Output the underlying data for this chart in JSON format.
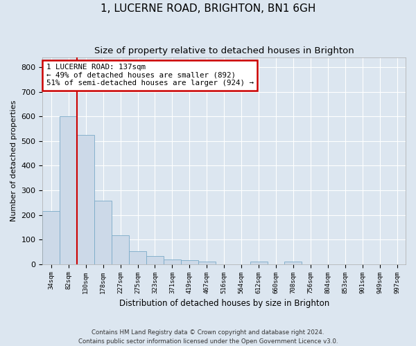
{
  "title": "1, LUCERNE ROAD, BRIGHTON, BN1 6GH",
  "subtitle": "Size of property relative to detached houses in Brighton",
  "xlabel": "Distribution of detached houses by size in Brighton",
  "ylabel": "Number of detached properties",
  "footer_line1": "Contains HM Land Registry data © Crown copyright and database right 2024.",
  "footer_line2": "Contains public sector information licensed under the Open Government Licence v3.0.",
  "categories": [
    "34sqm",
    "82sqm",
    "130sqm",
    "178sqm",
    "227sqm",
    "275sqm",
    "323sqm",
    "371sqm",
    "419sqm",
    "467sqm",
    "516sqm",
    "564sqm",
    "612sqm",
    "660sqm",
    "708sqm",
    "756sqm",
    "804sqm",
    "853sqm",
    "901sqm",
    "949sqm",
    "997sqm"
  ],
  "bar_values": [
    215,
    600,
    525,
    257,
    117,
    52,
    32,
    20,
    16,
    10,
    0,
    0,
    10,
    0,
    10,
    0,
    0,
    0,
    0,
    0,
    0
  ],
  "bar_color": "#ccd9e8",
  "bar_edge_color": "#7aaac8",
  "vline_color": "#cc0000",
  "vline_x_index": 2,
  "annotation_line1": "1 LUCERNE ROAD: 137sqm",
  "annotation_line2": "← 49% of detached houses are smaller (892)",
  "annotation_line3": "51% of semi-detached houses are larger (924) →",
  "annotation_box_color": "#ffffff",
  "annotation_box_edge": "#cc0000",
  "ylim": [
    0,
    840
  ],
  "yticks": [
    0,
    100,
    200,
    300,
    400,
    500,
    600,
    700,
    800
  ],
  "bg_color": "#dce6f0",
  "plot_bg_color": "#dce6f0",
  "grid_color": "#ffffff",
  "title_fontsize": 11,
  "subtitle_fontsize": 9.5
}
